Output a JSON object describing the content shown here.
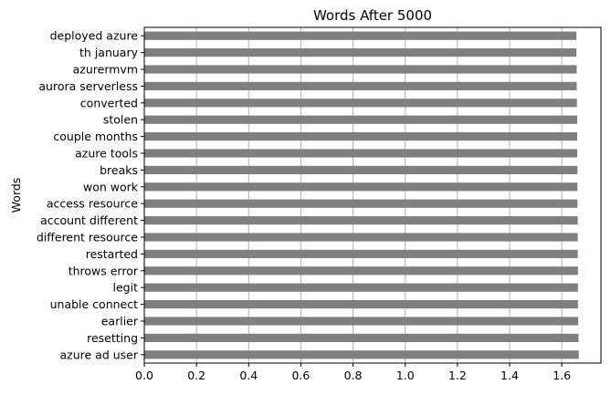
{
  "chart_data": {
    "type": "bar",
    "orientation": "horizontal",
    "title": "Words After 5000",
    "xlabel": "",
    "ylabel": "Words",
    "categories": [
      "deployed azure",
      "th january",
      "azurermvm",
      "aurora serverless",
      "converted",
      "stolen",
      "couple months",
      "azure tools",
      "breaks",
      "won work",
      "access resource",
      "account different",
      "different resource",
      "restarted",
      "throws error",
      "legit",
      "unable connect",
      "earlier",
      "resetting",
      "azure ad user"
    ],
    "values": [
      1.656,
      1.656,
      1.657,
      1.657,
      1.658,
      1.659,
      1.659,
      1.659,
      1.66,
      1.66,
      1.66,
      1.661,
      1.661,
      1.661,
      1.662,
      1.662,
      1.662,
      1.663,
      1.664,
      1.665
    ],
    "xlim": [
      0,
      1.75
    ],
    "xticks": [
      "0.0",
      "0.2",
      "0.4",
      "0.6",
      "0.8",
      "1.0",
      "1.2",
      "1.4",
      "1.6"
    ],
    "xtick_values": [
      0,
      0.2,
      0.4,
      0.6,
      0.8,
      1.0,
      1.2,
      1.4,
      1.6
    ],
    "grid": "vertical",
    "bar_color": "#808080",
    "grid_color": "#b0b0b0"
  }
}
